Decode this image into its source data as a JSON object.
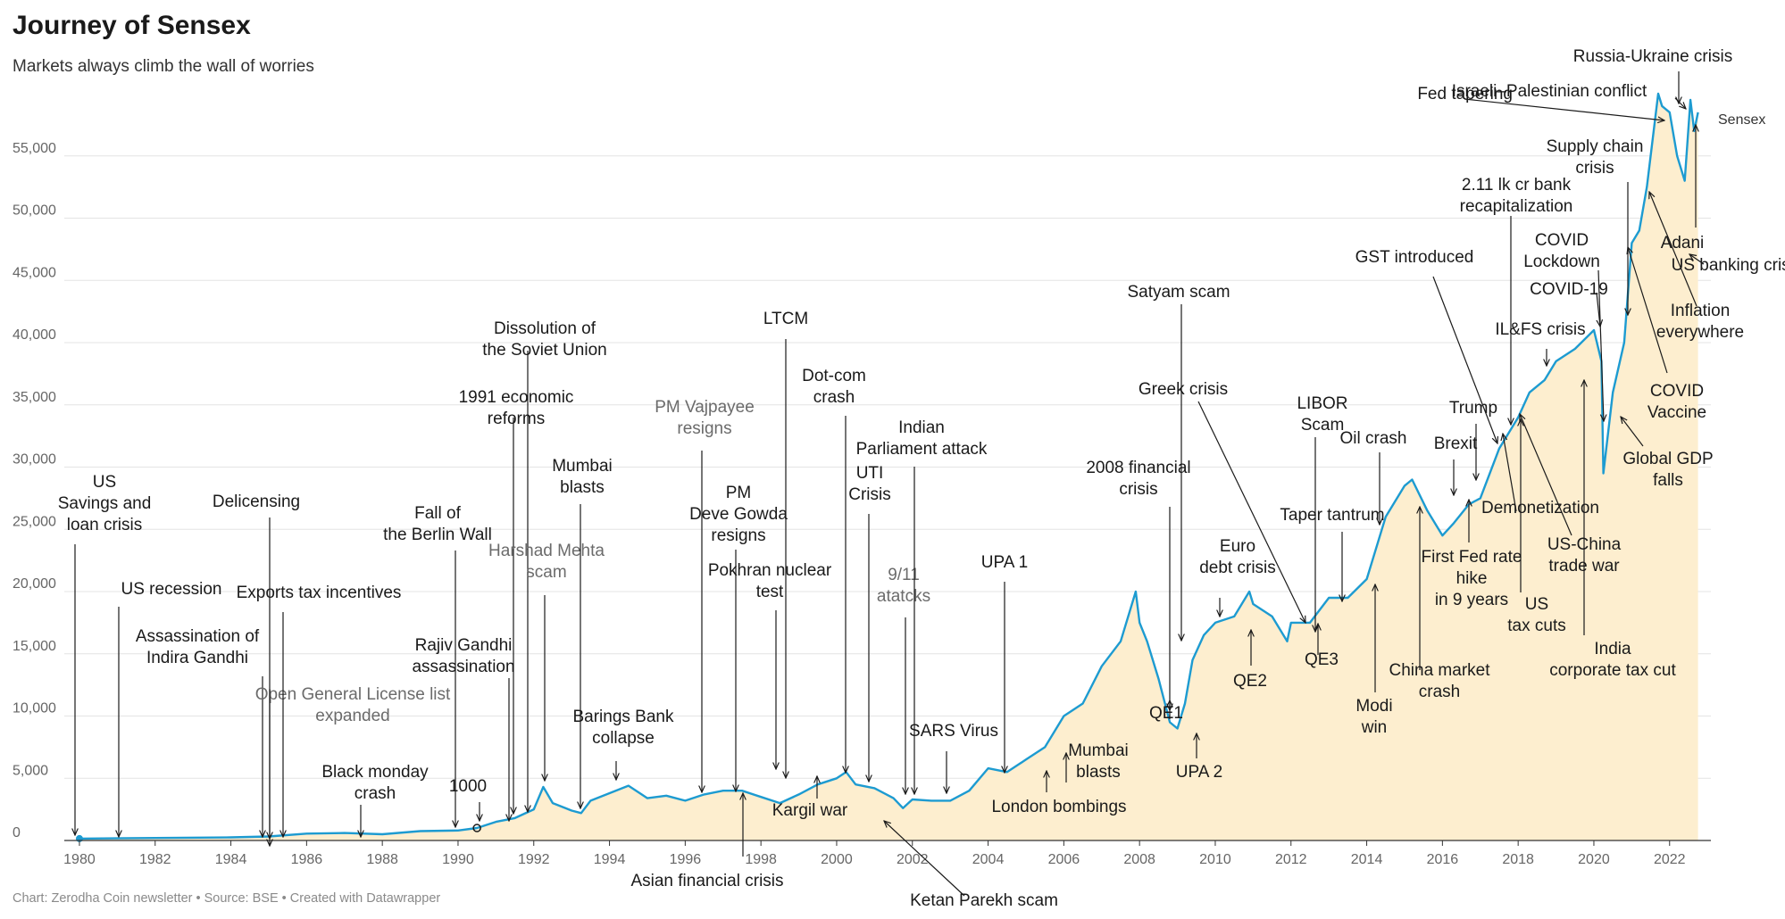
{
  "title": "Journey of Sensex",
  "subtitle": "Markets always climb the wall of worries",
  "footer": "Chart: Zerodha Coin newsletter • Source: BSE • Created with Datawrapper",
  "colors": {
    "line": "#1d9bd1",
    "area": "#fdeecf",
    "grid": "#e4e4e4",
    "axis": "#333333",
    "arrow": "#1a1a1a",
    "muted_text": "#6b6b6b"
  },
  "chart_data": {
    "type": "area",
    "title": "Journey of Sensex",
    "subtitle": "Markets always climb the wall of worries",
    "xlabel": "",
    "ylabel": "",
    "xlim": [
      1979.6,
      2022.8
    ],
    "ylim": [
      0,
      60000
    ],
    "x_ticks": [
      1980,
      1982,
      1984,
      1986,
      1988,
      1990,
      1992,
      1994,
      1996,
      1998,
      2000,
      2002,
      2004,
      2006,
      2008,
      2010,
      2012,
      2014,
      2016,
      2018,
      2020,
      2022
    ],
    "y_ticks": [
      0,
      5000,
      10000,
      15000,
      20000,
      25000,
      30000,
      35000,
      40000,
      45000,
      50000,
      55000
    ],
    "y_tick_labels": [
      "0",
      "5,000",
      "10,000",
      "15,000",
      "20,000",
      "25,000",
      "30,000",
      "35,000",
      "40,000",
      "45,000",
      "50,000",
      "55,000"
    ],
    "grid": "horizontal",
    "series": [
      {
        "name": "Sensex",
        "x": [
          1980.0,
          1982.0,
          1984.0,
          1985.0,
          1986.0,
          1987.0,
          1988.0,
          1989.0,
          1990.0,
          1990.5,
          1991.0,
          1991.5,
          1992.0,
          1992.25,
          1992.5,
          1993.0,
          1993.25,
          1993.5,
          1994.0,
          1994.5,
          1995.0,
          1995.5,
          1996.0,
          1996.5,
          1997.0,
          1997.5,
          1998.0,
          1998.5,
          1999.0,
          1999.5,
          2000.0,
          2000.25,
          2000.5,
          2001.0,
          2001.5,
          2001.75,
          2002.0,
          2002.5,
          2003.0,
          2003.5,
          2004.0,
          2004.5,
          2005.0,
          2005.5,
          2006.0,
          2006.5,
          2007.0,
          2007.5,
          2007.9,
          2008.0,
          2008.2,
          2008.5,
          2008.8,
          2009.0,
          2009.2,
          2009.4,
          2009.7,
          2010.0,
          2010.5,
          2010.9,
          2011.0,
          2011.5,
          2011.9,
          2012.0,
          2012.5,
          2013.0,
          2013.5,
          2014.0,
          2014.5,
          2015.0,
          2015.2,
          2015.6,
          2016.0,
          2016.3,
          2016.7,
          2017.0,
          2017.5,
          2018.0,
          2018.3,
          2018.7,
          2019.0,
          2019.5,
          2020.0,
          2020.2,
          2020.25,
          2020.5,
          2020.8,
          2021.0,
          2021.2,
          2021.4,
          2021.7,
          2021.8,
          2022.0,
          2022.2,
          2022.4,
          2022.55,
          2022.65,
          2022.75
        ],
        "values": [
          148,
          200,
          250,
          320,
          550,
          600,
          500,
          750,
          800,
          1000,
          1500,
          1800,
          2500,
          4300,
          3000,
          2400,
          2200,
          3200,
          3800,
          4400,
          3400,
          3600,
          3200,
          3700,
          4000,
          4000,
          3500,
          3000,
          3700,
          4500,
          5000,
          5500,
          4500,
          4200,
          3400,
          2600,
          3300,
          3200,
          3200,
          4000,
          5800,
          5500,
          6500,
          7500,
          10000,
          11000,
          14000,
          16000,
          20000,
          17500,
          16000,
          13000,
          9500,
          9000,
          11000,
          14500,
          16500,
          17500,
          18000,
          20000,
          19000,
          18000,
          16000,
          17500,
          17500,
          19500,
          19500,
          21000,
          26000,
          28500,
          29000,
          26500,
          24500,
          25500,
          27000,
          27500,
          31500,
          34000,
          36000,
          37000,
          38500,
          39500,
          41000,
          38500,
          29500,
          36000,
          40000,
          48000,
          49000,
          52500,
          60000,
          59000,
          58500,
          55000,
          53000,
          59500,
          57000,
          58500
        ]
      }
    ],
    "series_label": "Sensex",
    "annotations": [
      {
        "text": [
          "US",
          "Savings and",
          "loan crisis"
        ],
        "x": 1980.0
      },
      {
        "text": [
          "US recession"
        ],
        "x": 1981.0
      },
      {
        "text": [
          "Assassination of",
          "Indira Gandhi"
        ],
        "x": 1984.8
      },
      {
        "text": [
          "Open General License list",
          "expanded"
        ],
        "x": 1985.0
      },
      {
        "text": [
          "Delicensing"
        ],
        "x": 1985.0
      },
      {
        "text": [
          "Exports tax incentives"
        ],
        "x": 1985.3
      },
      {
        "text": [
          "Black monday",
          "crash"
        ],
        "x": 1987.7
      },
      {
        "text": [
          "Fall of",
          "the Berlin Wall"
        ],
        "x": 1989.9
      },
      {
        "text": [
          "Rajiv Gandhi",
          "assassination"
        ],
        "x": 1991.4
      },
      {
        "text": [
          "1000"
        ],
        "x": 1990.5
      },
      {
        "text": [
          "1991 economic",
          "reforms"
        ],
        "x": 1991.5
      },
      {
        "text": [
          "Dissolution of",
          "the Soviet Union"
        ],
        "x": 1991.9
      },
      {
        "text": [
          "Harshad Mehta",
          "scam"
        ],
        "x": 1992.3
      },
      {
        "text": [
          "Mumbai",
          "blasts"
        ],
        "x": 1993.2
      },
      {
        "text": [
          "Barings Bank",
          "collapse"
        ],
        "x": 1995.1
      },
      {
        "text": [
          "PM Vajpayee",
          "resigns"
        ],
        "x": 1996.4
      },
      {
        "text": [
          "PM",
          "Deve Gowda",
          "resigns"
        ],
        "x": 1997.3
      },
      {
        "text": [
          "Asian financial crisis"
        ],
        "x": 1997.5
      },
      {
        "text": [
          "Pokhran nuclear",
          "test"
        ],
        "x": 1998.4
      },
      {
        "text": [
          "LTCM"
        ],
        "x": 1998.6
      },
      {
        "text": [
          "Kargil war"
        ],
        "x": 1999.4
      },
      {
        "text": [
          "Dot-com",
          "crash"
        ],
        "x": 2000.2
      },
      {
        "text": [
          "UTI",
          "Crisis"
        ],
        "x": 2000.8
      },
      {
        "text": [
          "Ketan Parekh scam"
        ],
        "x": 2001.2
      },
      {
        "text": [
          "9/11",
          "atatcks"
        ],
        "x": 2001.7
      },
      {
        "text": [
          "Indian",
          "Parliament attack"
        ],
        "x": 2002.0
      },
      {
        "text": [
          "SARS Virus"
        ],
        "x": 2002.9
      },
      {
        "text": [
          "UPA 1"
        ],
        "x": 2004.3
      },
      {
        "text": [
          "London bombings"
        ],
        "x": 2005.5
      },
      {
        "text": [
          "Mumbai",
          "blasts"
        ],
        "x": 2006.5
      },
      {
        "text": [
          "2008 financial",
          "crisis"
        ],
        "x": 2008.8
      },
      {
        "text": [
          "QE1"
        ],
        "x": 2008.9
      },
      {
        "text": [
          "Satyam scam"
        ],
        "x": 2009.0
      },
      {
        "text": [
          "UPA 2"
        ],
        "x": 2009.3
      },
      {
        "text": [
          "Euro",
          "debt crisis"
        ],
        "x": 2010.2
      },
      {
        "text": [
          "QE2"
        ],
        "x": 2010.9
      },
      {
        "text": [
          "Greek crisis"
        ],
        "x": 2012.3
      },
      {
        "text": [
          "LIBOR",
          "Scam"
        ],
        "x": 2012.6
      },
      {
        "text": [
          "QE3"
        ],
        "x": 2012.7
      },
      {
        "text": [
          "Taper tantrum"
        ],
        "x": 2013.4
      },
      {
        "text": [
          "Oil crash"
        ],
        "x": 2014.5
      },
      {
        "text": [
          "Modi",
          "win"
        ],
        "x": 2014.2
      },
      {
        "text": [
          "China market",
          "crash"
        ],
        "x": 2015.2
      },
      {
        "text": [
          "GST introduced"
        ],
        "x": 2017.5
      },
      {
        "text": [
          "Brexit"
        ],
        "x": 2016.5
      },
      {
        "text": [
          "First Fed rate",
          "hike",
          "in 9 years"
        ],
        "x": 2015.9
      },
      {
        "text": [
          "Trump"
        ],
        "x": 2016.9
      },
      {
        "text": [
          "Demonetization"
        ],
        "x": 2016.9
      },
      {
        "text": [
          "2.11 lk cr bank",
          "recapitalization"
        ],
        "x": 2017.8
      },
      {
        "text": [
          "US",
          "tax cuts"
        ],
        "x": 2018.0
      },
      {
        "text": [
          "US-China",
          "trade war"
        ],
        "x": 2018.5
      },
      {
        "text": [
          "IL&FS crisis"
        ],
        "x": 2018.8
      },
      {
        "text": [
          "India",
          "corporate tax cut"
        ],
        "x": 2019.7
      },
      {
        "text": [
          "COVID-19"
        ],
        "x": 2020.2
      },
      {
        "text": [
          "COVID",
          "Lockdown"
        ],
        "x": 2020.2
      },
      {
        "text": [
          "Global GDP",
          "falls"
        ],
        "x": 2020.5
      },
      {
        "text": [
          "Supply chain",
          "crisis"
        ],
        "x": 2021.0
      },
      {
        "text": [
          "COVID",
          "Vaccine"
        ],
        "x": 2021.0
      },
      {
        "text": [
          "Inflation",
          "everywhere"
        ],
        "x": 2021.6
      },
      {
        "text": [
          "Fed tapering"
        ],
        "x": 2021.7
      },
      {
        "text": [
          "Israeli–Palestinian conflict"
        ],
        "x": 2022.0
      },
      {
        "text": [
          "Russia-Ukraine crisis"
        ],
        "x": 2022.2
      },
      {
        "text": [
          "US banking crisis"
        ],
        "x": 2022.6
      },
      {
        "text": [
          "Adani"
        ],
        "x": 2022.6
      }
    ]
  }
}
